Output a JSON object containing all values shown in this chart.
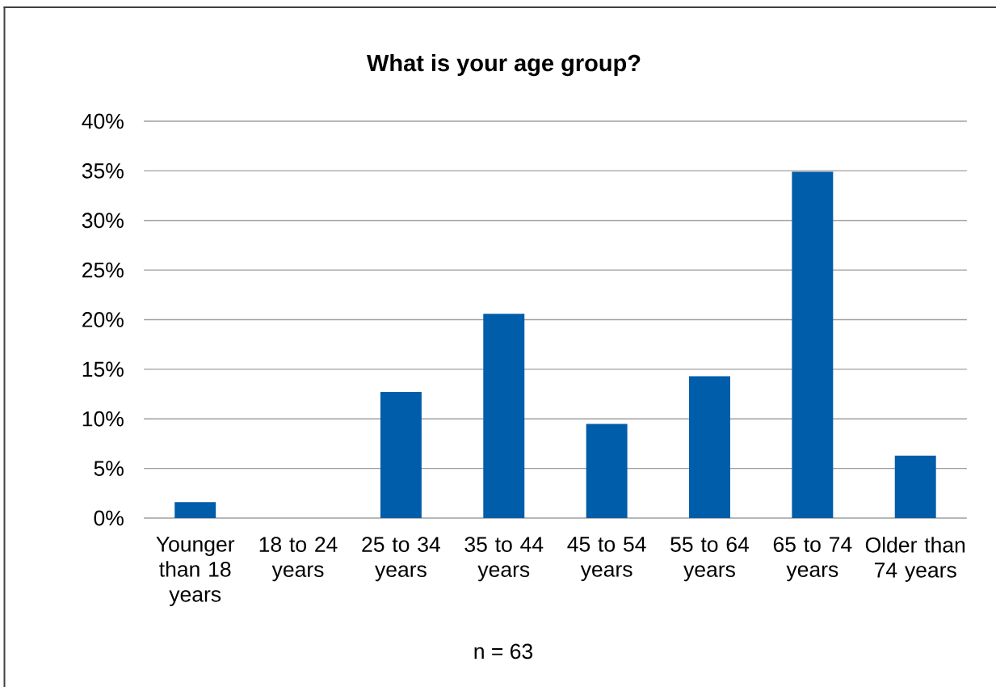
{
  "chart_data": {
    "type": "bar",
    "title": "What is your age group?",
    "categories": [
      "Younger than 18 years",
      "18 to 24 years",
      "25 to 34 years",
      "35 to 44 years",
      "45 to 54 years",
      "55 to 64 years",
      "65 to 74 years",
      "Older than 74 years"
    ],
    "values": [
      1.6,
      0,
      12.7,
      20.6,
      9.5,
      14.3,
      34.9,
      6.3
    ],
    "color": "#005daa",
    "ylim": [
      0,
      40
    ],
    "yticks": [
      {
        "value": 0,
        "label": "0%"
      },
      {
        "value": 5,
        "label": "5%"
      },
      {
        "value": 10,
        "label": "10%"
      },
      {
        "value": 15,
        "label": "15%"
      },
      {
        "value": 20,
        "label": "20%"
      },
      {
        "value": 25,
        "label": "25%"
      },
      {
        "value": 30,
        "label": "30%"
      },
      {
        "value": 35,
        "label": "35%"
      },
      {
        "value": 40,
        "label": "40%"
      }
    ],
    "grid": "y",
    "annotations": [
      "n = 63"
    ]
  }
}
